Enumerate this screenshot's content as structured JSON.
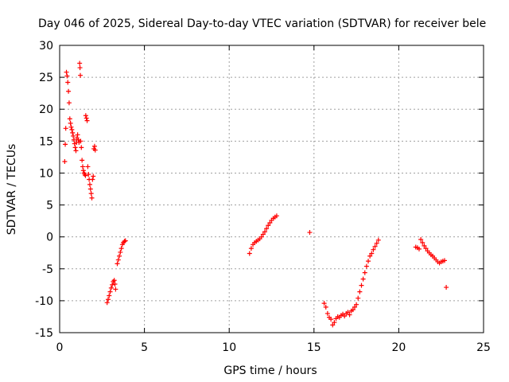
{
  "chart_data": {
    "type": "scatter",
    "title": "Day 046 of 2025, Sidereal Day-to-day VTEC variation (SDTVAR) for receiver bele",
    "xlabel": "GPS time / hours",
    "ylabel": "SDTVAR / TECUs",
    "xlim": [
      0,
      25
    ],
    "ylim": [
      -15,
      30
    ],
    "xticks": [
      0,
      5,
      10,
      15,
      20,
      25
    ],
    "yticks": [
      -15,
      -10,
      -5,
      0,
      5,
      10,
      15,
      20,
      25,
      30
    ],
    "grid": true,
    "marker": "+",
    "color": "#ff0000",
    "segments": [
      {
        "name": "seg-a",
        "x": [
          0.3,
          0.33,
          0.36,
          0.4,
          0.44,
          0.48,
          0.52,
          0.56,
          0.6,
          0.64,
          0.68,
          0.72,
          0.76,
          0.8,
          0.84,
          0.88,
          0.92,
          0.96,
          1.0
        ],
        "y": [
          11.8,
          14.5,
          17.0,
          25.8,
          25.2,
          24.2,
          22.8,
          21.0,
          18.5,
          17.8,
          17.2,
          16.8,
          16.3,
          15.8,
          15.2,
          14.6,
          14.0,
          13.5,
          14.8
        ]
      },
      {
        "name": "seg-b",
        "x": [
          1.02,
          1.06,
          1.1,
          1.14,
          1.18,
          1.2,
          1.22,
          1.24,
          1.28,
          1.32,
          1.36,
          1.4,
          1.44,
          1.48,
          1.52
        ],
        "y": [
          15.5,
          16.0,
          15.2,
          14.8,
          27.2,
          26.5,
          25.3,
          15.0,
          14.0,
          12.0,
          11.0,
          10.4,
          10.0,
          9.8,
          9.6
        ]
      },
      {
        "name": "seg-c",
        "x": [
          1.54,
          1.58,
          1.62,
          1.66,
          1.7,
          1.74,
          1.78,
          1.82,
          1.86,
          1.9,
          1.94,
          1.98,
          2.02,
          2.06,
          2.1
        ],
        "y": [
          19.0,
          18.6,
          18.2,
          11.0,
          9.8,
          9.0,
          8.2,
          7.5,
          6.8,
          6.1,
          9.0,
          9.5,
          13.8,
          14.2,
          13.6
        ]
      },
      {
        "name": "seg-d",
        "x": [
          2.8,
          2.86,
          2.92,
          2.98,
          3.04,
          3.1,
          3.16,
          3.22,
          3.26,
          3.3
        ],
        "y": [
          -10.3,
          -9.8,
          -9.2,
          -8.6,
          -8.0,
          -7.5,
          -7.0,
          -6.8,
          -7.4,
          -8.2
        ]
      },
      {
        "name": "seg-e",
        "x": [
          3.4,
          3.46,
          3.52,
          3.58,
          3.64,
          3.7,
          3.76,
          3.82,
          3.88
        ],
        "y": [
          -4.2,
          -3.6,
          -3.0,
          -2.4,
          -1.8,
          -1.2,
          -0.9,
          -0.7,
          -0.6
        ]
      },
      {
        "name": "seg-f",
        "x": [
          11.2,
          11.3,
          11.4,
          11.5,
          11.6,
          11.7,
          11.8,
          11.9,
          12.0,
          12.1,
          12.2,
          12.3,
          12.4,
          12.5,
          12.6,
          12.7,
          12.8
        ],
        "y": [
          -2.6,
          -1.8,
          -1.2,
          -0.9,
          -0.7,
          -0.5,
          -0.3,
          0.0,
          0.4,
          0.8,
          1.3,
          1.8,
          2.2,
          2.6,
          2.9,
          3.1,
          3.3
        ]
      },
      {
        "name": "seg-g",
        "x": [
          14.75
        ],
        "y": [
          0.7
        ]
      },
      {
        "name": "seg-h",
        "x": [
          15.6,
          15.7,
          15.8,
          15.9,
          16.0,
          16.1,
          16.2,
          16.3,
          16.4,
          16.5,
          16.6,
          16.7,
          16.8,
          16.9,
          17.0,
          17.1,
          17.2,
          17.3,
          17.4,
          17.5
        ],
        "y": [
          -10.4,
          -11.0,
          -12.0,
          -12.6,
          -12.9,
          -13.8,
          -13.4,
          -12.8,
          -12.5,
          -12.6,
          -12.3,
          -12.1,
          -12.4,
          -12.0,
          -11.8,
          -12.2,
          -11.6,
          -11.4,
          -11.0,
          -10.6
        ]
      },
      {
        "name": "seg-i",
        "x": [
          17.6,
          17.7,
          17.8,
          17.9,
          18.0,
          18.1,
          18.2,
          18.3,
          18.4,
          18.5,
          18.6,
          18.7,
          18.8
        ],
        "y": [
          -9.6,
          -8.6,
          -7.6,
          -6.6,
          -5.6,
          -4.6,
          -3.8,
          -3.0,
          -2.6,
          -2.0,
          -1.5,
          -1.0,
          -0.5
        ]
      },
      {
        "name": "seg-j",
        "x": [
          21.0,
          21.1,
          21.2,
          21.3,
          21.4,
          21.5,
          21.6,
          21.7,
          21.8,
          21.9,
          22.0,
          22.1,
          22.2,
          22.3,
          22.4,
          22.5,
          22.6,
          22.7,
          22.8
        ],
        "y": [
          -1.6,
          -1.7,
          -1.9,
          -0.4,
          -0.9,
          -1.4,
          -1.8,
          -2.2,
          -2.5,
          -2.8,
          -3.0,
          -3.3,
          -3.6,
          -3.9,
          -4.1,
          -3.9,
          -3.8,
          -3.7,
          -7.9
        ]
      }
    ]
  }
}
